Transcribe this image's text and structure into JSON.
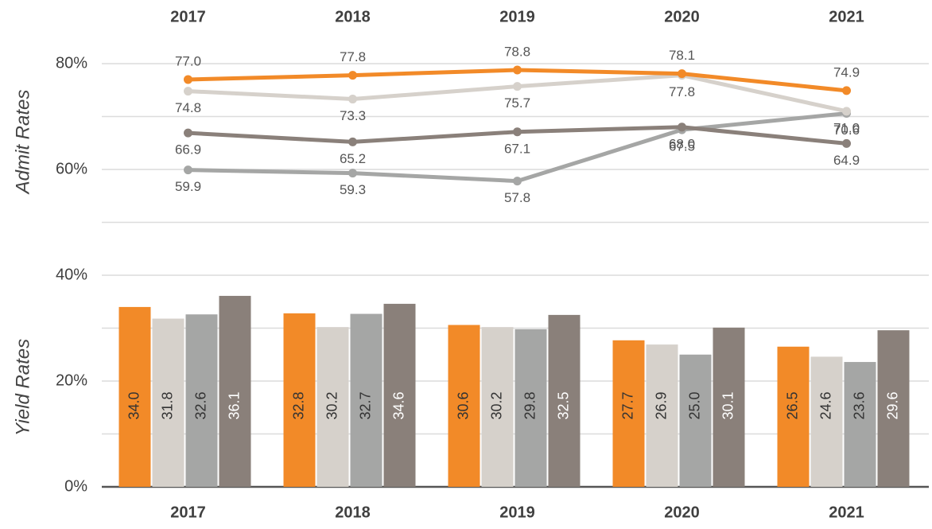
{
  "chart_data": {
    "type": "line_bar",
    "categories": [
      "2017",
      "2018",
      "2019",
      "2020",
      "2021"
    ],
    "ylabel_top": "Admit Rates",
    "ylabel_bottom": "Yield Rates",
    "ylim": [
      0,
      80
    ],
    "yticks": [
      {
        "value": 0,
        "label": "0%"
      },
      {
        "value": 20,
        "label": "20%"
      },
      {
        "value": 40,
        "label": "40%"
      },
      {
        "value": 60,
        "label": "60%"
      },
      {
        "value": 80,
        "label": "80%"
      }
    ],
    "minor_yticks": [
      10,
      30,
      50,
      70
    ],
    "grid": true,
    "lines": [
      {
        "color": "#f28a28",
        "values": [
          77.0,
          77.8,
          78.8,
          78.1,
          74.9
        ],
        "value_labels": [
          "77.0",
          "77.8",
          "78.8",
          "78.1",
          "74.9"
        ]
      },
      {
        "color": "#d6d1cb",
        "values": [
          74.8,
          73.3,
          75.7,
          77.8,
          71.0
        ],
        "value_labels": [
          "74.8",
          "73.3",
          "75.7",
          "77.8",
          "71.0"
        ]
      },
      {
        "color": "#8a807a",
        "values": [
          66.9,
          65.2,
          67.1,
          68.0,
          64.9
        ],
        "value_labels": [
          "66.9",
          "65.2",
          "67.1",
          "68.0",
          "64.9"
        ]
      },
      {
        "color": "#a5a6a5",
        "values": [
          59.9,
          59.3,
          57.8,
          67.5,
          70.6
        ],
        "value_labels": [
          "59.9",
          "59.3",
          "57.8",
          "67.5",
          "70.6"
        ]
      }
    ],
    "bars": [
      {
        "color": "#f28a28",
        "values": [
          34.0,
          32.8,
          30.6,
          27.7,
          26.5
        ],
        "value_labels": [
          "34.0",
          "32.8",
          "30.6",
          "27.7",
          "26.5"
        ]
      },
      {
        "color": "#d6d1cb",
        "values": [
          31.8,
          30.2,
          30.2,
          26.9,
          24.6
        ],
        "value_labels": [
          "31.8",
          "30.2",
          "30.2",
          "26.9",
          "24.6"
        ]
      },
      {
        "color": "#a5a6a5",
        "values": [
          32.6,
          32.7,
          29.8,
          25.0,
          23.6
        ],
        "value_labels": [
          "32.6",
          "32.7",
          "29.8",
          "25.0",
          "23.6"
        ]
      },
      {
        "color": "#8a807a",
        "values": [
          36.1,
          34.6,
          32.5,
          30.1,
          29.6
        ],
        "value_labels": [
          "36.1",
          "34.6",
          "32.5",
          "30.1",
          "29.6"
        ]
      }
    ]
  }
}
